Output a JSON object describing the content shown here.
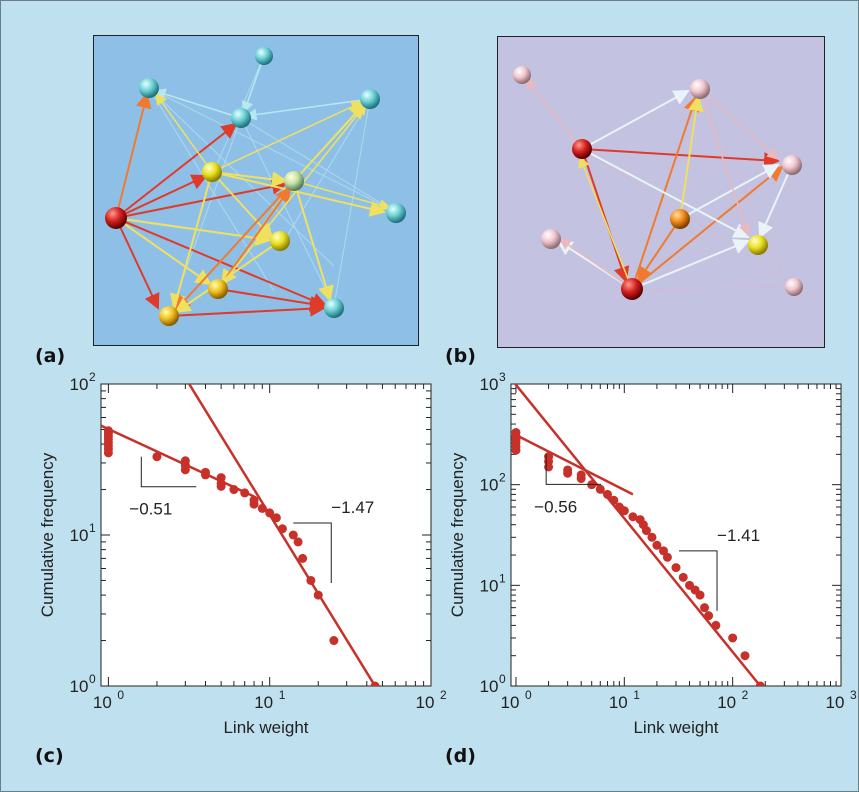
{
  "panel_labels": {
    "a": "(a)",
    "b": "(b)",
    "c": "(c)",
    "d": "(d)"
  },
  "network_a": {
    "background": "#8ec0e7",
    "nodes": [
      {
        "id": "n1",
        "color": "#7ed6d8"
      },
      {
        "id": "n2",
        "color": "#7ed6d8"
      },
      {
        "id": "n3",
        "color": "#7ed6d8"
      },
      {
        "id": "n4",
        "color": "#7ed6d8"
      },
      {
        "id": "n5",
        "color": "#f2ee36"
      },
      {
        "id": "n6",
        "color": "#d8e69a"
      },
      {
        "id": "n7",
        "color": "#d22020"
      },
      {
        "id": "n8",
        "color": "#7ed6d8"
      },
      {
        "id": "n9",
        "color": "#f2ee36"
      },
      {
        "id": "n10",
        "color": "#f2ee36"
      },
      {
        "id": "n11",
        "color": "#f2ee36"
      },
      {
        "id": "n12",
        "color": "#7ed6d8"
      }
    ]
  },
  "network_b": {
    "background": "#c3c2e1",
    "nodes": [
      {
        "id": "m1",
        "color": "#f0c8d0"
      },
      {
        "id": "m2",
        "color": "#f0c8d0"
      },
      {
        "id": "m3",
        "color": "#d22020"
      },
      {
        "id": "m4",
        "color": "#f0c8d0"
      },
      {
        "id": "m5",
        "color": "#f08a1a"
      },
      {
        "id": "m6",
        "color": "#f0c8d0"
      },
      {
        "id": "m7",
        "color": "#f2ee36"
      },
      {
        "id": "m8",
        "color": "#d22020"
      },
      {
        "id": "m9",
        "color": "#f0c8d0"
      }
    ]
  },
  "chart_data": [
    {
      "type": "scatter",
      "panel": "(c)",
      "xlabel": "Link weight",
      "ylabel": "Cumulative frequency",
      "x_scale": "log",
      "y_scale": "log",
      "xlim": [
        0.9,
        100
      ],
      "ylim": [
        1,
        100
      ],
      "x_ticks": [
        {
          "base": "10",
          "exp": "0"
        },
        {
          "base": "10",
          "exp": "1"
        },
        {
          "base": "10",
          "exp": "2"
        }
      ],
      "y_ticks": [
        {
          "base": "10",
          "exp": "0"
        },
        {
          "base": "10",
          "exp": "1"
        },
        {
          "base": "10",
          "exp": "2"
        }
      ],
      "points": [
        [
          1,
          49
        ],
        [
          1,
          47
        ],
        [
          1,
          45
        ],
        [
          1,
          43
        ],
        [
          1,
          41
        ],
        [
          1,
          39
        ],
        [
          1,
          37
        ],
        [
          1,
          35
        ],
        [
          2,
          33
        ],
        [
          3,
          31
        ],
        [
          3,
          29
        ],
        [
          3,
          27
        ],
        [
          4,
          26
        ],
        [
          4,
          25
        ],
        [
          5,
          24
        ],
        [
          5,
          22
        ],
        [
          5,
          21
        ],
        [
          6,
          20
        ],
        [
          7,
          19
        ],
        [
          8,
          17
        ],
        [
          8,
          16
        ],
        [
          9,
          15
        ],
        [
          10,
          14
        ],
        [
          11,
          13
        ],
        [
          12,
          11
        ],
        [
          14,
          10
        ],
        [
          15,
          9
        ],
        [
          16,
          7
        ],
        [
          18,
          5
        ],
        [
          20,
          4
        ],
        [
          25,
          2
        ],
        [
          45,
          1
        ]
      ],
      "fit_lines": [
        {
          "slope_label": "−0.51",
          "from": [
            0.9,
            53
          ],
          "to": [
            8,
            18
          ]
        },
        {
          "slope_label": "−1.47",
          "from": [
            3,
            110
          ],
          "to": [
            45,
            1
          ]
        }
      ],
      "color": "#c8302a"
    },
    {
      "type": "scatter",
      "panel": "(d)",
      "xlabel": "Link weight",
      "ylabel": "Cumulative frequency",
      "x_scale": "log",
      "y_scale": "log",
      "xlim": [
        0.9,
        1000
      ],
      "ylim": [
        1,
        1000
      ],
      "x_ticks": [
        {
          "base": "10",
          "exp": "0"
        },
        {
          "base": "10",
          "exp": "1"
        },
        {
          "base": "10",
          "exp": "2"
        },
        {
          "base": "10",
          "exp": "3"
        }
      ],
      "y_ticks": [
        {
          "base": "10",
          "exp": "0"
        },
        {
          "base": "10",
          "exp": "1"
        },
        {
          "base": "10",
          "exp": "2"
        },
        {
          "base": "10",
          "exp": "3"
        }
      ],
      "points": [
        [
          1,
          330
        ],
        [
          1,
          300
        ],
        [
          1,
          280
        ],
        [
          1,
          260
        ],
        [
          1,
          240
        ],
        [
          1,
          220
        ],
        [
          2,
          190
        ],
        [
          2,
          170
        ],
        [
          2,
          150
        ],
        [
          3,
          140
        ],
        [
          3,
          130
        ],
        [
          4,
          125
        ],
        [
          4,
          115
        ],
        [
          5,
          100
        ],
        [
          6,
          90
        ],
        [
          7,
          80
        ],
        [
          8,
          70
        ],
        [
          9,
          60
        ],
        [
          10,
          55
        ],
        [
          12,
          48
        ],
        [
          14,
          45
        ],
        [
          15,
          40
        ],
        [
          16,
          35
        ],
        [
          18,
          30
        ],
        [
          20,
          25
        ],
        [
          23,
          22
        ],
        [
          25,
          19
        ],
        [
          30,
          15
        ],
        [
          35,
          12
        ],
        [
          40,
          10
        ],
        [
          45,
          9
        ],
        [
          50,
          8
        ],
        [
          55,
          6
        ],
        [
          60,
          5
        ],
        [
          70,
          4
        ],
        [
          100,
          3
        ],
        [
          130,
          2
        ],
        [
          180,
          1
        ]
      ],
      "fit_lines": [
        {
          "slope_label": "−0.56",
          "from": [
            0.9,
            330
          ],
          "to": [
            12,
            80
          ]
        },
        {
          "slope_label": "−1.41",
          "from": [
            0.95,
            1050
          ],
          "to": [
            180,
            1
          ]
        }
      ],
      "color": "#c8302a"
    }
  ]
}
